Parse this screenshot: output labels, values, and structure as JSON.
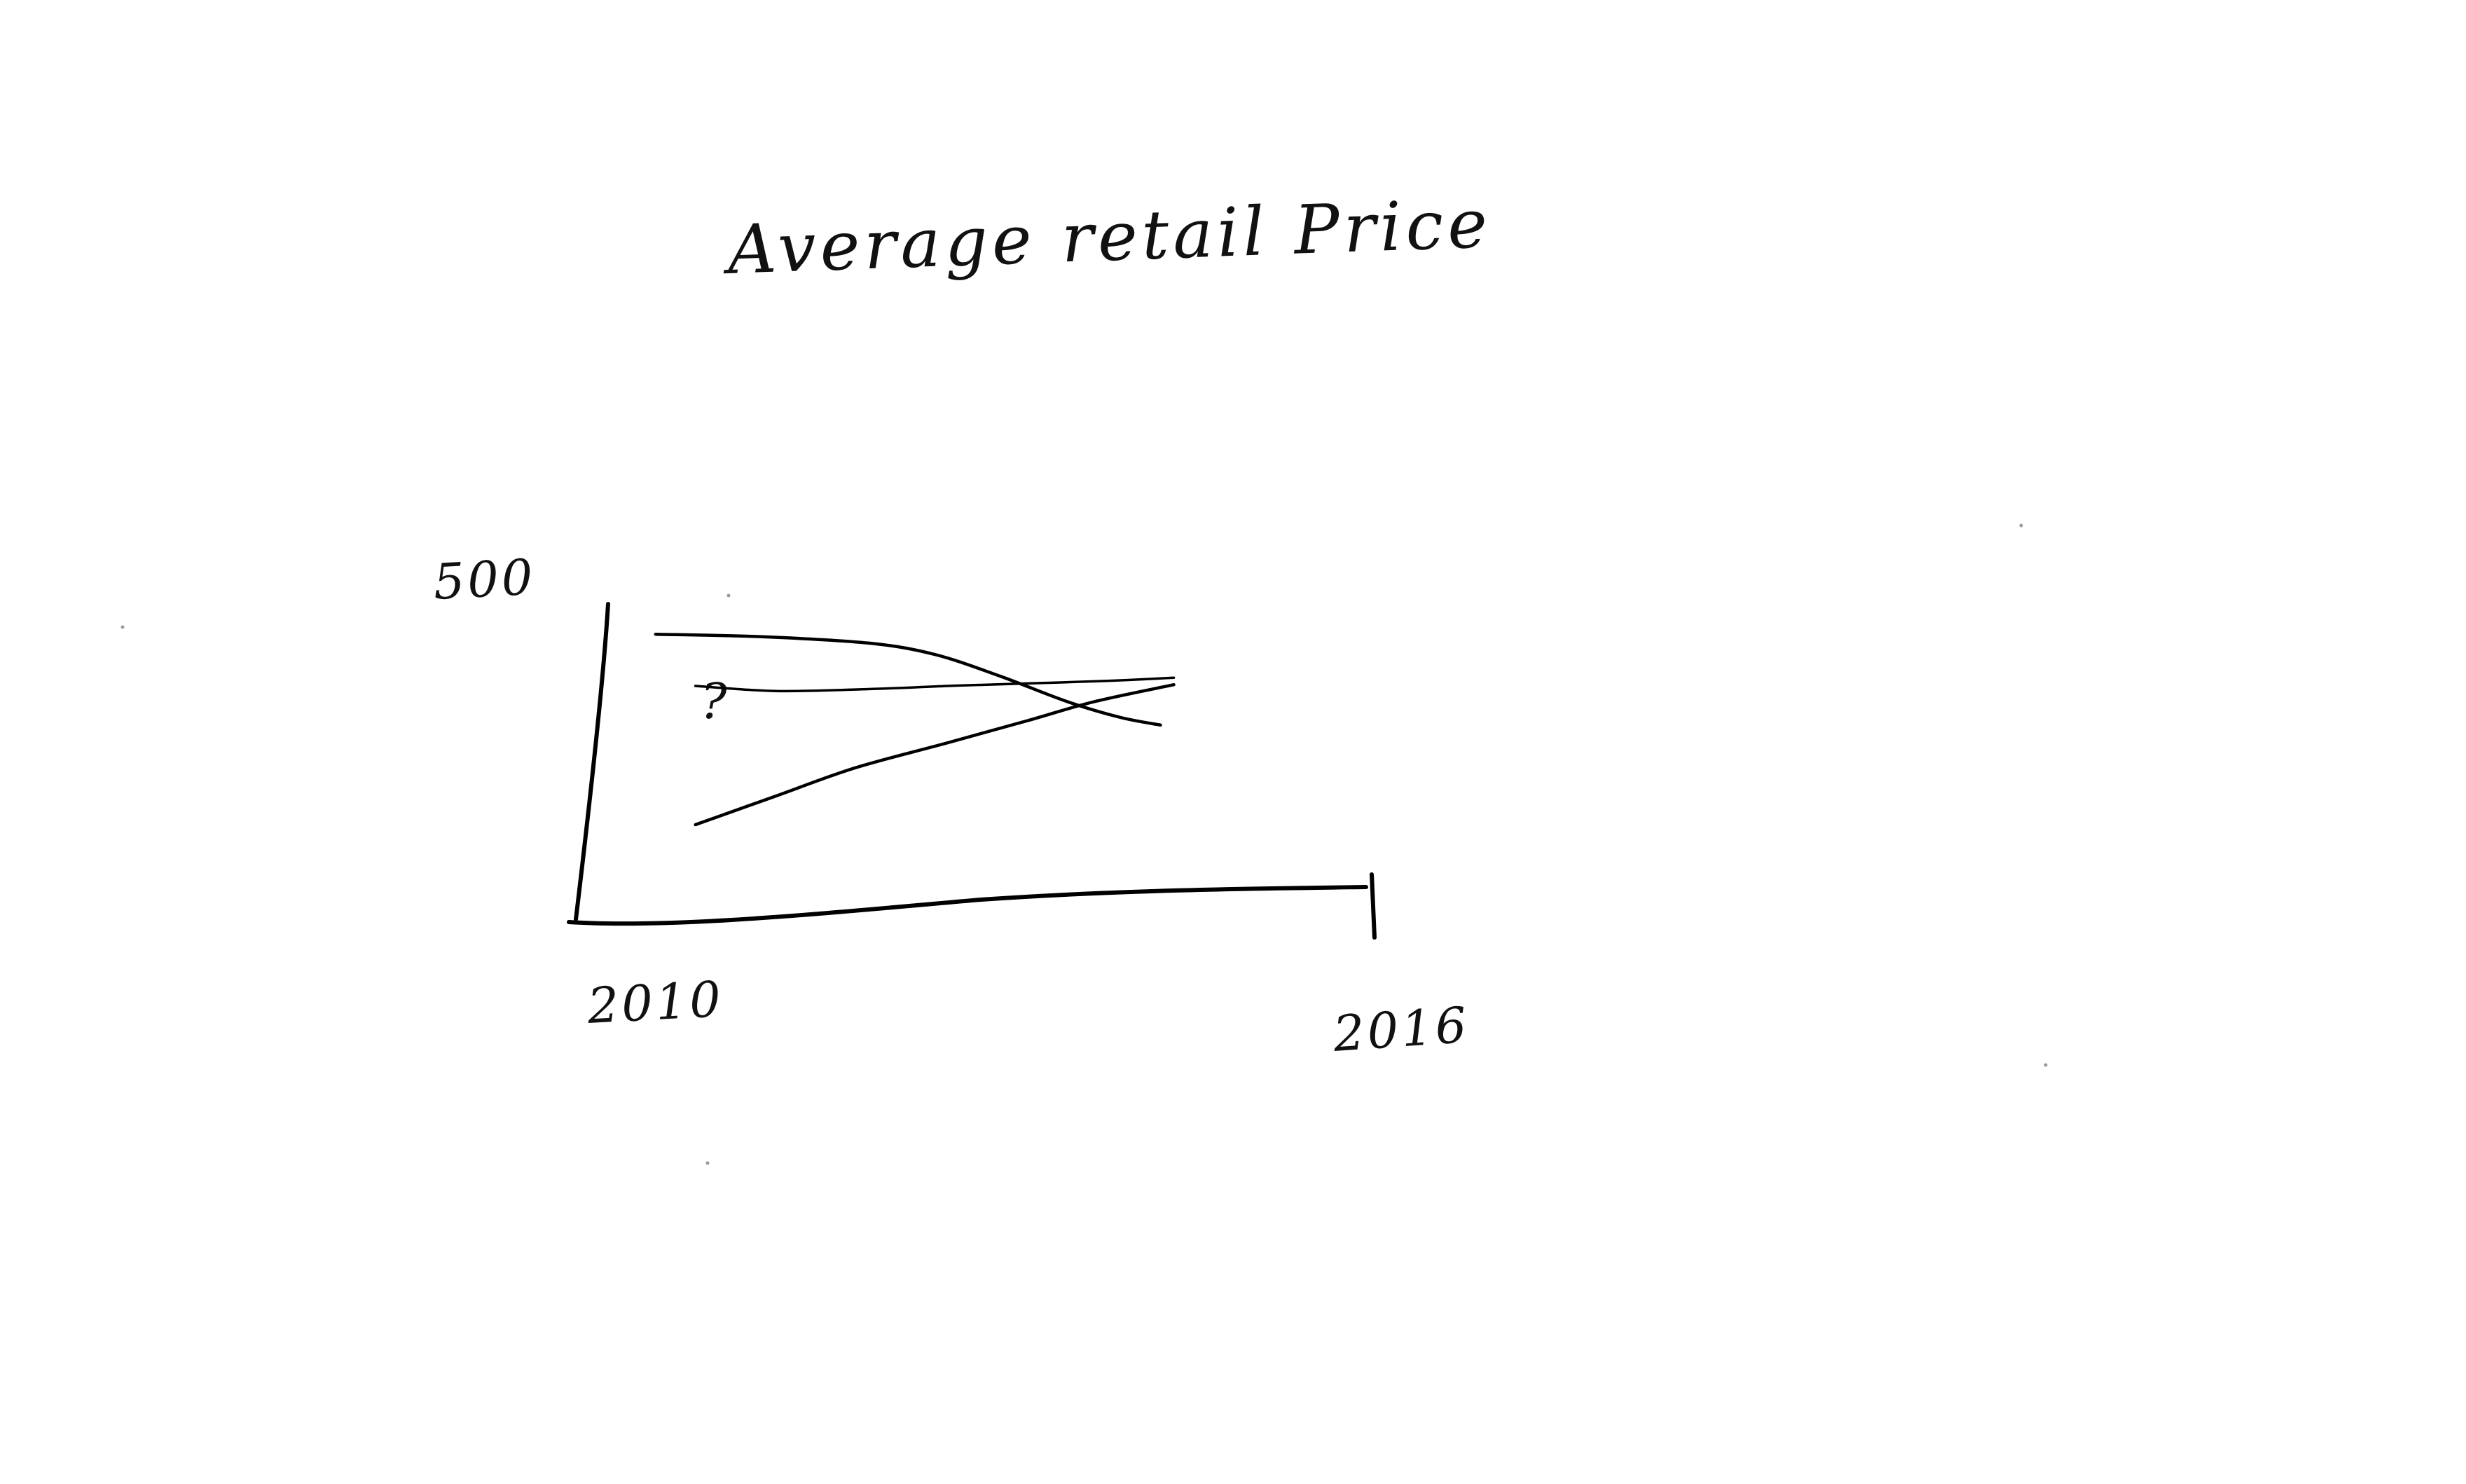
{
  "chart_data": {
    "type": "line",
    "title": "Average retail Price",
    "xlabel": "",
    "ylabel": "",
    "xlim": [
      2010,
      2016
    ],
    "ylim": [
      0,
      500
    ],
    "x_tick_labels": [
      "2010",
      "2016"
    ],
    "y_tick_labels": [
      "500"
    ],
    "annotation": "?",
    "grid": false,
    "series": [
      {
        "x": [
          2010.6,
          2011.4,
          2012.2,
          2012.7,
          2013.2,
          2013.7,
          2014.1,
          2014.4
        ],
        "values": [
          452,
          448,
          438,
          420,
          385,
          345,
          320,
          308
        ]
      },
      {
        "x": [
          2010.9,
          2011.5,
          2012.2,
          2012.8,
          2013.4,
          2014.0,
          2014.5
        ],
        "values": [
          370,
          362,
          365,
          370,
          374,
          378,
          383
        ]
      },
      {
        "x": [
          2010.9,
          2011.5,
          2012.1,
          2012.8,
          2013.4,
          2013.9,
          2014.5
        ],
        "values": [
          150,
          195,
          240,
          280,
          315,
          345,
          372
        ]
      }
    ]
  }
}
